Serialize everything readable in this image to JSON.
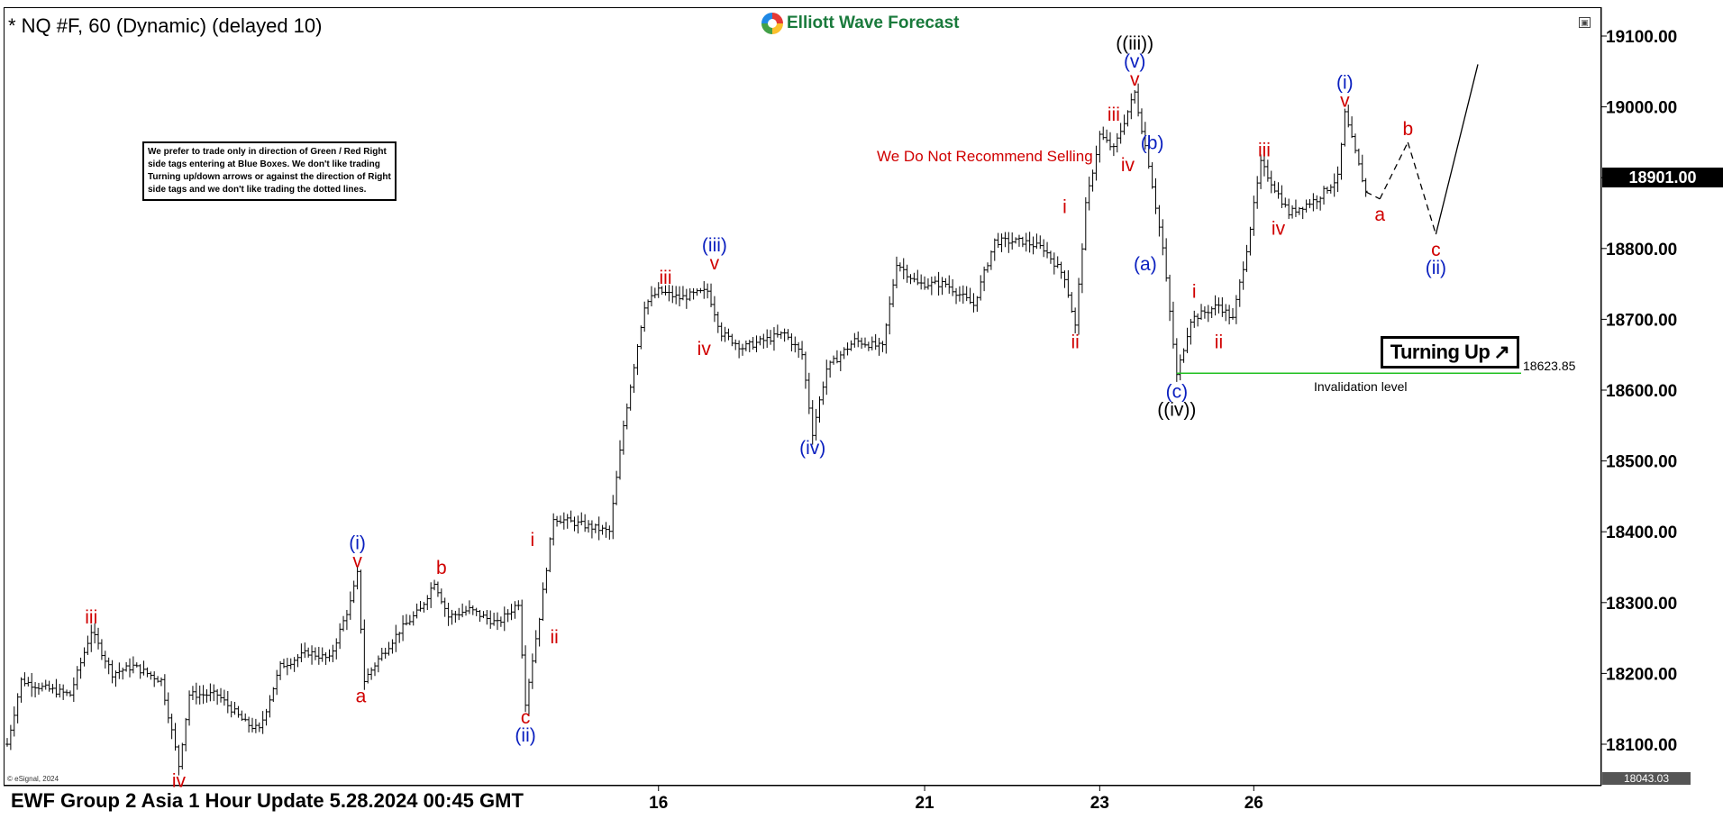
{
  "header": {
    "symbol_title": "* NQ #F, 60 (Dynamic) (delayed 10)",
    "logo_text": "Elliott Wave Forecast",
    "window_button": "▣"
  },
  "notes": {
    "disclaimer": "We prefer to trade only in direction of Green / Red Right side tags entering at Blue Boxes. We don't like trading Turning up/down arrows or against the direction of Right side tags and we don't like trading the dotted lines.",
    "recommendation": "We Do Not Recommend Selling",
    "turning_label": "Turning Up",
    "turning_arrow": "↗",
    "invalidation_label": "Invalidation level",
    "invalidation_value": "18623.85",
    "copyright": "© eSignal, 2024"
  },
  "footer": {
    "update_text": "EWF Group 2 Asia 1 Hour Update 5.28.2024 00:45 GMT"
  },
  "colors": {
    "wave_red": "#d00000",
    "wave_blue": "#0a1fbf",
    "wave_black": "#000000",
    "invalidation_green": "#22c022",
    "price_tag_bg": "#000000"
  },
  "chart_data": {
    "type": "ohlc",
    "instrument": "NQ #F",
    "timeframe": "60",
    "ylim": [
      18000,
      19150
    ],
    "y_ticks": [
      18100,
      18200,
      18300,
      18400,
      18500,
      18600,
      18700,
      18800,
      18900,
      19000,
      19100
    ],
    "y_tick_labels": [
      "18100.00",
      "18200.00",
      "18300.00",
      "18400.00",
      "18500.00",
      "18600.00",
      "18700.00",
      "18800.00",
      "18900.00",
      "19000.00",
      "19100.00"
    ],
    "x_ticks": [
      {
        "label": "16",
        "bar": 186
      },
      {
        "label": "21",
        "bar": 262
      },
      {
        "label": "23",
        "bar": 312
      },
      {
        "label": "26",
        "bar": 356
      }
    ],
    "last_price": "18901.00",
    "low_marker": "18043.03",
    "invalidation_level": 18623.85,
    "grid": false,
    "price_path": [
      [
        0,
        18100
      ],
      [
        4,
        18190
      ],
      [
        10,
        18180
      ],
      [
        18,
        18170
      ],
      [
        24,
        18260
      ],
      [
        30,
        18200
      ],
      [
        36,
        18210
      ],
      [
        44,
        18190
      ],
      [
        49,
        18070
      ],
      [
        52,
        18170
      ],
      [
        60,
        18170
      ],
      [
        68,
        18130
      ],
      [
        72,
        18120
      ],
      [
        78,
        18210
      ],
      [
        86,
        18230
      ],
      [
        92,
        18220
      ],
      [
        98,
        18300
      ],
      [
        100,
        18340
      ],
      [
        102,
        18190
      ],
      [
        106,
        18220
      ],
      [
        112,
        18260
      ],
      [
        118,
        18290
      ],
      [
        122,
        18330
      ],
      [
        126,
        18280
      ],
      [
        132,
        18290
      ],
      [
        140,
        18270
      ],
      [
        146,
        18300
      ],
      [
        148,
        18160
      ],
      [
        152,
        18280
      ],
      [
        156,
        18420
      ],
      [
        164,
        18410
      ],
      [
        172,
        18400
      ],
      [
        176,
        18550
      ],
      [
        182,
        18720
      ],
      [
        186,
        18740
      ],
      [
        192,
        18730
      ],
      [
        200,
        18740
      ],
      [
        204,
        18680
      ],
      [
        210,
        18660
      ],
      [
        216,
        18670
      ],
      [
        222,
        18680
      ],
      [
        227,
        18650
      ],
      [
        230,
        18540
      ],
      [
        234,
        18630
      ],
      [
        242,
        18670
      ],
      [
        250,
        18660
      ],
      [
        254,
        18780
      ],
      [
        260,
        18750
      ],
      [
        268,
        18750
      ],
      [
        276,
        18720
      ],
      [
        282,
        18810
      ],
      [
        290,
        18810
      ],
      [
        296,
        18800
      ],
      [
        302,
        18760
      ],
      [
        305,
        18690
      ],
      [
        308,
        18860
      ],
      [
        312,
        18960
      ],
      [
        316,
        18940
      ],
      [
        322,
        19020
      ],
      [
        326,
        18920
      ],
      [
        330,
        18800
      ],
      [
        334,
        18620
      ],
      [
        338,
        18700
      ],
      [
        346,
        18720
      ],
      [
        350,
        18700
      ],
      [
        354,
        18800
      ],
      [
        358,
        18920
      ],
      [
        366,
        18850
      ],
      [
        374,
        18870
      ],
      [
        380,
        18900
      ],
      [
        382,
        18990
      ],
      [
        388,
        18880
      ]
    ],
    "projection": [
      [
        388,
        18880
      ],
      [
        392,
        18870
      ],
      [
        400,
        18950
      ],
      [
        408,
        18820
      ],
      [
        420,
        19060
      ]
    ],
    "wave_labels": [
      {
        "text": "iii",
        "bar": 24,
        "price": 18260,
        "pos": "above",
        "color": "red"
      },
      {
        "text": "iv",
        "bar": 49,
        "price": 18070,
        "pos": "below",
        "color": "red"
      },
      {
        "text": "(i)",
        "bar": 100,
        "price": 18340,
        "pos": "above2",
        "color": "blue"
      },
      {
        "text": "v",
        "bar": 100,
        "price": 18340,
        "pos": "above",
        "color": "red"
      },
      {
        "text": "a",
        "bar": 101,
        "price": 18190,
        "pos": "below",
        "color": "red"
      },
      {
        "text": "b",
        "bar": 124,
        "price": 18330,
        "pos": "above",
        "color": "red"
      },
      {
        "text": "c",
        "bar": 148,
        "price": 18160,
        "pos": "below",
        "color": "red"
      },
      {
        "text": "(ii)",
        "bar": 148,
        "price": 18160,
        "pos": "below2",
        "color": "blue"
      },
      {
        "text": "i",
        "bar": 150,
        "price": 18370,
        "pos": "above",
        "color": "red"
      },
      {
        "text": "ii",
        "bar": 153,
        "price": 18250,
        "pos": "right",
        "color": "red"
      },
      {
        "text": "iii",
        "bar": 188,
        "price": 18740,
        "pos": "above",
        "color": "red"
      },
      {
        "text": "(iii)",
        "bar": 202,
        "price": 18760,
        "pos": "above2",
        "color": "blue"
      },
      {
        "text": "v",
        "bar": 202,
        "price": 18760,
        "pos": "above",
        "color": "red"
      },
      {
        "text": "iv",
        "bar": 199,
        "price": 18680,
        "pos": "below",
        "color": "red"
      },
      {
        "text": "(iv)",
        "bar": 230,
        "price": 18540,
        "pos": "below",
        "color": "blue"
      },
      {
        "text": "i",
        "bar": 302,
        "price": 18840,
        "pos": "above",
        "color": "red"
      },
      {
        "text": "ii",
        "bar": 305,
        "price": 18690,
        "pos": "below",
        "color": "red"
      },
      {
        "text": "iii",
        "bar": 316,
        "price": 18970,
        "pos": "above",
        "color": "red"
      },
      {
        "text": "iv",
        "bar": 320,
        "price": 18940,
        "pos": "below",
        "color": "red"
      },
      {
        "text": "((iii))",
        "bar": 322,
        "price": 19020,
        "pos": "above3",
        "color": "black"
      },
      {
        "text": "(v)",
        "bar": 322,
        "price": 19020,
        "pos": "above2",
        "color": "blue"
      },
      {
        "text": "v",
        "bar": 322,
        "price": 19020,
        "pos": "above",
        "color": "red"
      },
      {
        "text": "(b)",
        "bar": 327,
        "price": 18930,
        "pos": "above",
        "color": "blue"
      },
      {
        "text": "(a)",
        "bar": 325,
        "price": 18800,
        "pos": "below",
        "color": "blue"
      },
      {
        "text": "(c)",
        "bar": 334,
        "price": 18620,
        "pos": "below",
        "color": "blue"
      },
      {
        "text": "((iv))",
        "bar": 334,
        "price": 18620,
        "pos": "below2",
        "color": "black"
      },
      {
        "text": "i",
        "bar": 339,
        "price": 18720,
        "pos": "above",
        "color": "red"
      },
      {
        "text": "ii",
        "bar": 346,
        "price": 18690,
        "pos": "below",
        "color": "red"
      },
      {
        "text": "iii",
        "bar": 359,
        "price": 18920,
        "pos": "above",
        "color": "red"
      },
      {
        "text": "iv",
        "bar": 363,
        "price": 18850,
        "pos": "below",
        "color": "red"
      },
      {
        "text": "(i)",
        "bar": 382,
        "price": 18990,
        "pos": "above2",
        "color": "blue"
      },
      {
        "text": "v",
        "bar": 382,
        "price": 18990,
        "pos": "above",
        "color": "red"
      },
      {
        "text": "a",
        "bar": 392,
        "price": 18870,
        "pos": "below",
        "color": "red"
      },
      {
        "text": "b",
        "bar": 400,
        "price": 18950,
        "pos": "above",
        "color": "red"
      },
      {
        "text": "c",
        "bar": 408,
        "price": 18820,
        "pos": "below",
        "color": "red"
      },
      {
        "text": "(ii)",
        "bar": 408,
        "price": 18820,
        "pos": "below2",
        "color": "blue"
      }
    ]
  }
}
